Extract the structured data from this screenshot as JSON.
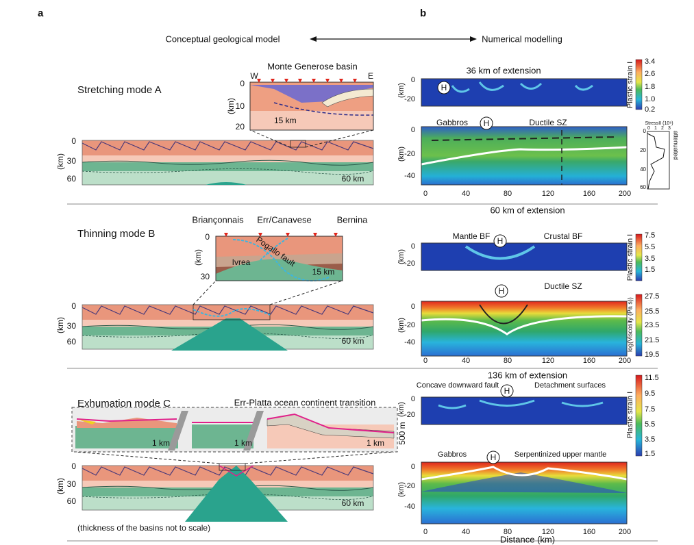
{
  "panel_labels": {
    "a": "a",
    "b": "b"
  },
  "header": {
    "left": "Conceptual geological model",
    "right": "Numerical modelling"
  },
  "conceptual": {
    "mode_a": {
      "title": "Stretching mode A",
      "inset": {
        "title": "Monte Generose basin",
        "west": "W",
        "east": "E",
        "depth_ticks": [
          "0",
          "10",
          "20"
        ],
        "depth_unit": "(km)",
        "scale": "15 km"
      },
      "section": {
        "depth_ticks": [
          "0",
          "30",
          "60"
        ],
        "depth_unit": "(km)",
        "scale": "60 km"
      }
    },
    "mode_b": {
      "title": "Thinning mode B",
      "inset": {
        "labels": [
          "Briançonnais",
          "Err/Canavese",
          "Bernina"
        ],
        "fault": "Pogallo fault",
        "zone": "Ivrea",
        "depth_ticks": [
          "0",
          "30"
        ],
        "depth_unit": "(km)",
        "scale": "15 km"
      },
      "section": {
        "depth_ticks": [
          "0",
          "30",
          "60"
        ],
        "depth_unit": "(km)",
        "scale": "60 km"
      }
    },
    "mode_c": {
      "title": "Exhumation mode C",
      "inset": {
        "title": "Err-Platta ocean continent transition",
        "scales": [
          "1 km",
          "1 km",
          "1 km"
        ],
        "height": "500 m"
      },
      "section": {
        "depth_ticks": [
          "0",
          "30",
          "60"
        ],
        "depth_unit": "(km)",
        "scale": "60 km"
      }
    },
    "note": "(thickness of the basins not to scale)"
  },
  "numerical": {
    "stage_a": {
      "extension": "36 km of extension",
      "strain": {
        "marker": "H",
        "depth_ticks": [
          "0",
          "-20"
        ],
        "depth_unit": "(km)",
        "colorbar": {
          "title": "Plastic strain I",
          "ticks": [
            "3.4",
            "2.6",
            "1.8",
            "1.0",
            "0.2"
          ]
        }
      },
      "section": {
        "labels": [
          "Gabbros",
          "Ductile SZ"
        ],
        "marker": "H",
        "depth_ticks": [
          "0",
          "-20",
          "-40"
        ],
        "depth_unit": "(km)",
        "distance_ticks": [
          "0",
          "40",
          "80",
          "120",
          "160",
          "200"
        ]
      },
      "stress": {
        "title": "StressII (10⁸)",
        "x_ticks": [
          "0",
          "1",
          "2",
          "3"
        ],
        "depth_ticks": [
          "0",
          "20",
          "40",
          "60"
        ],
        "note": "attenuated"
      }
    },
    "stage_b": {
      "extension": "60 km of extension",
      "strain": {
        "labels": [
          "Mantle BF",
          "Crustal BF"
        ],
        "marker": "H",
        "depth_ticks": [
          "0",
          "-20"
        ],
        "depth_unit": "(km)",
        "colorbar": {
          "title": "Plastic strain I",
          "ticks": [
            "7.5",
            "5.5",
            "3.5",
            "1.5"
          ]
        }
      },
      "section": {
        "labels": [
          "Ductile SZ"
        ],
        "marker": "H",
        "depth_ticks": [
          "0",
          "-20",
          "-40"
        ],
        "depth_unit": "(km)",
        "distance_ticks": [
          "0",
          "40",
          "80",
          "120",
          "160",
          "200"
        ],
        "colorbar": {
          "title": "log(Viscosity (Pa s))",
          "ticks": [
            "27.5",
            "25.5",
            "23.5",
            "21.5",
            "19.5"
          ]
        }
      }
    },
    "stage_c": {
      "extension": "136 km of extension",
      "strain": {
        "labels": [
          "Concave downward fault",
          "Detachment surfaces"
        ],
        "marker": "H",
        "depth_ticks": [
          "0",
          "-20"
        ],
        "depth_unit": "(km)",
        "colorbar": {
          "title": "Plastic strain I",
          "ticks": [
            "11.5",
            "9.5",
            "7.5",
            "5.5",
            "3.5",
            "1.5"
          ]
        }
      },
      "section": {
        "labels": [
          "Gabbros",
          "Serpentinized upper mantle"
        ],
        "marker": "H",
        "depth_ticks": [
          "0",
          "-20",
          "-40"
        ],
        "depth_unit": "(km)",
        "distance_ticks": [
          "0",
          "40",
          "80",
          "120",
          "160",
          "200"
        ]
      }
    },
    "distance_label": "Distance (km)"
  }
}
